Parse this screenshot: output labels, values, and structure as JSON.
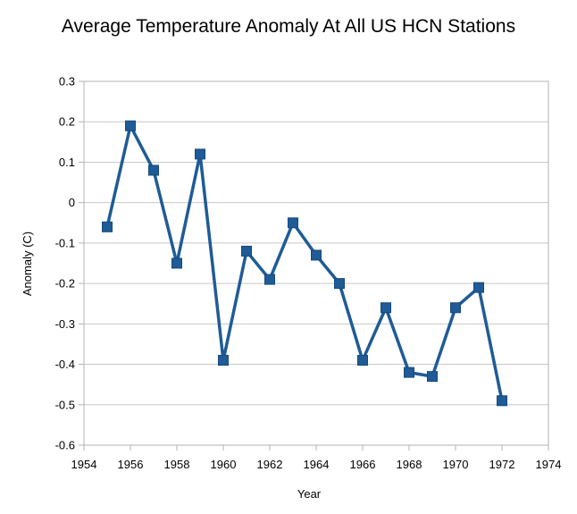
{
  "chart_data": {
    "type": "line",
    "title": "Average Temperature Anomaly At All US HCN Stations",
    "xlabel": "Year",
    "ylabel": "Anomaly (C)",
    "xlim": [
      1954,
      1974
    ],
    "ylim": [
      -0.6,
      0.3
    ],
    "xticks": [
      1954,
      1956,
      1958,
      1960,
      1962,
      1964,
      1966,
      1968,
      1970,
      1972,
      1974
    ],
    "yticks": [
      0.3,
      0.2,
      0.1,
      0,
      -0.1,
      -0.2,
      -0.3,
      -0.4,
      -0.5,
      -0.6
    ],
    "grid": "horizontal",
    "legend": "none",
    "marker": "square",
    "series": [
      {
        "color": "#1f5b96",
        "x": [
          1955,
          1956,
          1957,
          1958,
          1959,
          1960,
          1961,
          1962,
          1963,
          1964,
          1965,
          1966,
          1967,
          1968,
          1969,
          1970,
          1971,
          1972
        ],
        "y": [
          -0.06,
          0.19,
          0.08,
          -0.15,
          0.12,
          -0.39,
          -0.12,
          -0.19,
          -0.05,
          -0.13,
          -0.2,
          -0.39,
          -0.26,
          -0.42,
          -0.43,
          -0.26,
          -0.21,
          -0.49
        ]
      }
    ]
  }
}
